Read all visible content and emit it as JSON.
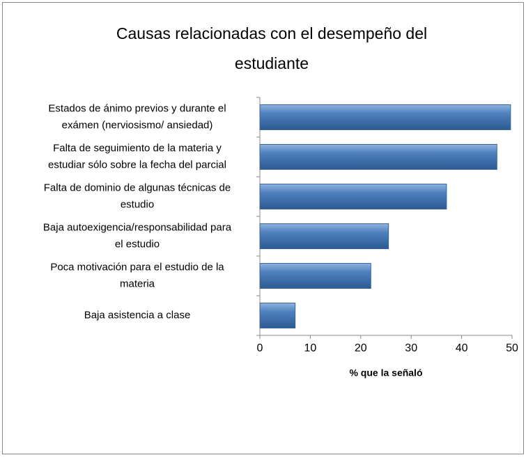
{
  "chart_data": {
    "type": "barh",
    "title": [
      "Causas relacionadas con el desempeño del",
      "estudiante"
    ],
    "categories": [
      [
        "Estados de ánimo previos y durante el",
        "exámen (nerviosismo/ ansiedad)"
      ],
      [
        "Falta de seguimiento de la materia y",
        "estudiar sólo sobre la fecha del parcial"
      ],
      [
        "Falta de dominio de algunas técnicas de",
        "estudio"
      ],
      [
        "Baja autoexigencia/responsabilidad para",
        "el estudio"
      ],
      [
        "Poca motivación para el estudio de la",
        "materia"
      ],
      [
        "Baja asistencia a clase"
      ]
    ],
    "values": [
      49.7,
      47,
      37,
      25.5,
      22,
      7
    ],
    "color": "#4f81bd",
    "xlabel": "% que la señaló",
    "xlim": [
      0,
      50
    ],
    "xticks": [
      0,
      10,
      20,
      30,
      40,
      50
    ],
    "grid": false
  }
}
